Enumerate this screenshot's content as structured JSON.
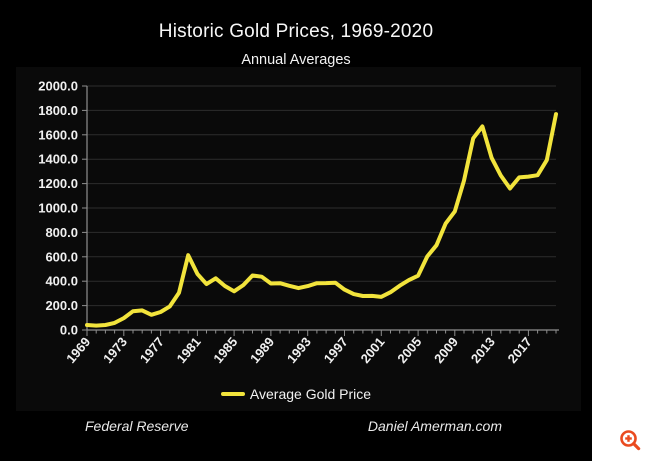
{
  "chart_data": {
    "type": "line",
    "title": "Historic Gold Prices, 1969-2020",
    "subtitle": "Annual Averages",
    "x": [
      1969,
      1970,
      1971,
      1972,
      1973,
      1974,
      1975,
      1976,
      1977,
      1978,
      1979,
      1980,
      1981,
      1982,
      1983,
      1984,
      1985,
      1986,
      1987,
      1988,
      1989,
      1990,
      1991,
      1992,
      1993,
      1994,
      1995,
      1996,
      1997,
      1998,
      1999,
      2000,
      2001,
      2002,
      2003,
      2004,
      2005,
      2006,
      2007,
      2008,
      2009,
      2010,
      2011,
      2012,
      2013,
      2014,
      2015,
      2016,
      2017,
      2018,
      2019,
      2020
    ],
    "series": [
      {
        "name": "Average Gold Price",
        "color": "#f2e43c",
        "values": [
          41.0,
          36.0,
          40.8,
          58.2,
          97.3,
          154.0,
          160.9,
          124.7,
          147.8,
          193.4,
          306.0,
          613.0,
          460.0,
          376.0,
          424.0,
          361.0,
          317.0,
          368.0,
          447.0,
          437.0,
          381.0,
          383.5,
          362.1,
          343.8,
          359.8,
          384.0,
          384.2,
          387.8,
          331.0,
          294.2,
          278.9,
          279.1,
          271.0,
          309.7,
          363.4,
          409.2,
          444.7,
          603.5,
          695.4,
          871.9,
          972.4,
          1224.5,
          1571.5,
          1669.0,
          1411.2,
          1266.4,
          1160.1,
          1250.8,
          1257.1,
          1268.5,
          1392.6,
          1769.6
        ]
      }
    ],
    "ylim": [
      0,
      2000
    ],
    "ytick_step": 200,
    "ytick_labels": [
      "0.0",
      "200.0",
      "400.0",
      "600.0",
      "800.0",
      "1000.0",
      "1200.0",
      "1400.0",
      "1600.0",
      "1800.0",
      "2000.0"
    ],
    "xticks": [
      1969,
      1973,
      1977,
      1981,
      1985,
      1989,
      1993,
      1997,
      2001,
      2005,
      2009,
      2013,
      2017
    ],
    "grid": "horizontal-only",
    "grid_color": "#2d2d2d",
    "axis_color": "#8f8f8f",
    "label_color": "#f0f0f0",
    "legend_position": "bottom-center"
  },
  "legend": {
    "label": "Average Gold Price"
  },
  "footer": {
    "source_left": "Federal Reserve",
    "source_right": "Daniel Amerman.com"
  },
  "side_panel": {
    "background": "#ffffff",
    "zoom_icon": "magnifier-plus",
    "zoom_icon_color": "#ea4b20"
  },
  "colors": {
    "panel_background": "#000000",
    "chart_object_background": "#0a0a0a",
    "title_text": "#f7f7f7",
    "line": "#f2e43c"
  }
}
